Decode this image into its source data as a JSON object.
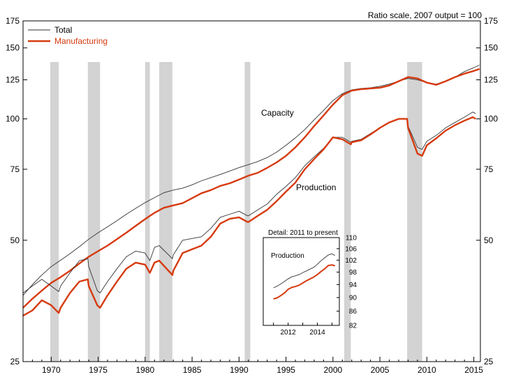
{
  "chart_data": {
    "type": "line",
    "scale_note": "Ratio scale, 2007 output = 100",
    "y_scale": "log",
    "ylim": [
      25,
      175
    ],
    "xlim": [
      1967,
      2015.7
    ],
    "y_ticks": [
      25,
      50,
      75,
      100,
      125,
      150,
      175
    ],
    "x_ticks": [
      1970,
      1975,
      1980,
      1985,
      1990,
      1995,
      2000,
      2005,
      2010,
      2015
    ],
    "grid": false,
    "legend_position": "top-left",
    "colors": {
      "total": "#333333",
      "manufacturing": "#d63a0f",
      "recession": "#d3d3d3"
    },
    "recessions": [
      [
        1969.9,
        1970.8
      ],
      [
        1973.9,
        1975.2
      ],
      [
        1980.0,
        1980.5
      ],
      [
        1981.5,
        1982.9
      ],
      [
        1990.6,
        1991.2
      ],
      [
        2001.2,
        2001.9
      ],
      [
        2007.9,
        2009.5
      ]
    ],
    "annotations": {
      "capacity": "Capacity",
      "production": "Production"
    },
    "series": [
      {
        "name": "Total",
        "measure": "Capacity",
        "x": [
          1967,
          1968,
          1969,
          1970,
          1971,
          1972,
          1973,
          1974,
          1975,
          1976,
          1977,
          1978,
          1979,
          1980,
          1981,
          1982,
          1983,
          1984,
          1985,
          1986,
          1987,
          1988,
          1989,
          1990,
          1991,
          1992,
          1993,
          1994,
          1995,
          1996,
          1997,
          1998,
          1999,
          2000,
          2001,
          2002,
          2003,
          2004,
          2005,
          2006,
          2007,
          2008,
          2009,
          2010,
          2011,
          2012,
          2013,
          2014,
          2015,
          2015.6
        ],
        "values": [
          36.5,
          38.8,
          41,
          43,
          44.6,
          46.3,
          48.2,
          50.3,
          52.2,
          54,
          55.9,
          58,
          60,
          62,
          63.8,
          65.6,
          66.6,
          67.3,
          68.6,
          70.2,
          71.5,
          72.8,
          74.2,
          75.7,
          77,
          78.4,
          80.2,
          82.7,
          86,
          89.7,
          94.1,
          99.5,
          105,
          111,
          115.5,
          118,
          119,
          119.5,
          120.5,
          122,
          124,
          126,
          125,
          123,
          122,
          124,
          127,
          131,
          134,
          136
        ]
      },
      {
        "name": "Manufacturing",
        "measure": "Capacity",
        "x": [
          1967,
          1968,
          1969,
          1970,
          1971,
          1972,
          1973,
          1974,
          1975,
          1976,
          1977,
          1978,
          1979,
          1980,
          1981,
          1982,
          1983,
          1984,
          1985,
          1986,
          1987,
          1988,
          1989,
          1990,
          1991,
          1992,
          1993,
          1994,
          1995,
          1996,
          1997,
          1998,
          1999,
          2000,
          2001,
          2002,
          2003,
          2004,
          2005,
          2006,
          2007,
          2008,
          2009,
          2010,
          2011,
          2012,
          2013,
          2014,
          2015,
          2015.6
        ],
        "values": [
          34,
          35.8,
          37.5,
          39.2,
          40.5,
          42,
          43.8,
          45.5,
          47,
          48.5,
          50.3,
          52.2,
          54.3,
          56.4,
          58.5,
          60.2,
          61,
          61.8,
          63.6,
          65.4,
          66.6,
          68.2,
          69.2,
          70.7,
          72.3,
          73.5,
          75.6,
          78,
          81,
          85,
          90,
          96,
          102,
          108.5,
          114.5,
          117.5,
          118.5,
          119,
          119.5,
          121,
          124,
          127,
          126,
          123,
          121.5,
          124,
          127,
          129.5,
          131.5,
          133
        ]
      },
      {
        "name": "Total",
        "measure": "Production",
        "x": [
          1967,
          1968,
          1969,
          1970,
          1970.8,
          1971,
          1972,
          1973,
          1973.9,
          1974,
          1974.9,
          1975.2,
          1976,
          1977,
          1978,
          1979,
          1980,
          1980.5,
          1981,
          1981.5,
          1982.9,
          1983,
          1984,
          1985,
          1986,
          1987,
          1988,
          1989,
          1990,
          1990.9,
          1991,
          1992,
          1993,
          1994,
          1995,
          1996,
          1997,
          1998,
          1999,
          2000,
          2001,
          2001.9,
          2002,
          2003,
          2004,
          2005,
          2006,
          2007,
          2007.9,
          2008,
          2009,
          2009.5,
          2010,
          2011,
          2012,
          2013,
          2014,
          2014.9,
          2015.2
        ],
        "values": [
          37,
          38.5,
          40,
          38.5,
          37.3,
          38.5,
          41.5,
          44.5,
          45,
          43,
          37.5,
          37,
          39.5,
          42.5,
          45.5,
          47,
          46.5,
          44.5,
          48,
          48.5,
          45,
          46,
          50,
          50.5,
          51,
          53.5,
          57,
          58,
          59,
          57.5,
          57.5,
          59.5,
          61.5,
          65,
          68,
          71.5,
          76.5,
          80.5,
          84.5,
          90,
          90,
          87.5,
          88,
          89,
          92,
          95,
          98,
          100,
          100,
          96,
          85,
          84,
          88,
          91,
          95,
          98,
          101,
          104,
          103
        ]
      },
      {
        "name": "Manufacturing",
        "measure": "Production",
        "x": [
          1967,
          1968,
          1969,
          1970,
          1970.8,
          1971,
          1972,
          1973,
          1973.9,
          1974,
          1974.9,
          1975.2,
          1976,
          1977,
          1978,
          1979,
          1980,
          1980.5,
          1981,
          1981.5,
          1982.9,
          1983,
          1984,
          1985,
          1986,
          1987,
          1988,
          1989,
          1990,
          1990.9,
          1991,
          1992,
          1993,
          1994,
          1995,
          1996,
          1997,
          1998,
          1999,
          2000,
          2001,
          2001.9,
          2002,
          2003,
          2004,
          2005,
          2006,
          2007,
          2007.9,
          2008,
          2009,
          2009.5,
          2010,
          2011,
          2012,
          2013,
          2014,
          2014.9,
          2015.2
        ],
        "values": [
          32.5,
          33.5,
          35.5,
          34.5,
          33,
          34,
          37,
          39.5,
          40,
          38.5,
          34.5,
          34,
          36.5,
          39.5,
          42.5,
          44,
          43.5,
          41.5,
          44,
          44.5,
          41,
          42,
          46.5,
          47.5,
          48.5,
          51,
          55,
          56.5,
          57,
          55.5,
          55.5,
          57.5,
          59.5,
          62.5,
          66,
          69.5,
          75,
          79.5,
          84,
          90,
          89,
          86.5,
          87.5,
          88.5,
          91.5,
          95,
          98,
          100,
          100,
          95,
          82,
          81,
          86,
          89.5,
          93.5,
          96.5,
          99,
          101,
          100
        ]
      }
    ],
    "inset": {
      "title": "Detail: 2011 to present",
      "label": "Production",
      "y_scale": "log",
      "ylim": [
        82,
        110
      ],
      "xlim": [
        2010.3,
        2015.5
      ],
      "y_ticks": [
        82,
        86,
        90,
        94,
        98,
        102,
        106,
        110
      ],
      "x_ticks": [
        2012,
        2014
      ],
      "series": [
        {
          "name": "Total",
          "x": [
            2011,
            2011.25,
            2011.5,
            2011.75,
            2012,
            2012.25,
            2012.5,
            2012.75,
            2013,
            2013.25,
            2013.5,
            2013.75,
            2014,
            2014.25,
            2014.5,
            2014.75,
            2015,
            2015.2
          ],
          "values": [
            93,
            93.5,
            94.2,
            95,
            95.8,
            96.5,
            96.8,
            97.2,
            97.8,
            98.4,
            99,
            99.6,
            100.6,
            101.8,
            102.8,
            103.8,
            104.2,
            103.6
          ]
        },
        {
          "name": "Manufacturing",
          "x": [
            2011,
            2011.25,
            2011.5,
            2011.75,
            2012,
            2012.25,
            2012.5,
            2012.75,
            2013,
            2013.25,
            2013.5,
            2013.75,
            2014,
            2014.25,
            2014.5,
            2014.75,
            2015,
            2015.2
          ],
          "values": [
            89.6,
            89.9,
            90.6,
            91.4,
            92.5,
            93.1,
            93.4,
            93.8,
            94.5,
            95.2,
            95.8,
            96.4,
            97.2,
            98.2,
            99.1,
            100.2,
            100.4,
            100.1
          ]
        }
      ]
    }
  }
}
